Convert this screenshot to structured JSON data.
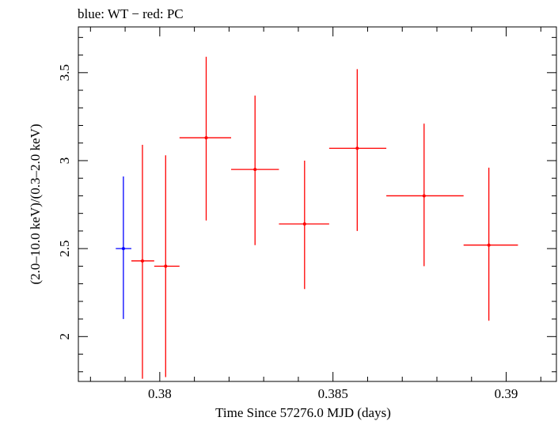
{
  "chart_data": {
    "type": "scatter",
    "title": "blue: WT − red: PC",
    "xlabel": "Time Since 57276.0 MJD (days)",
    "ylabel": "(2.0–10.0 keV)/(0.3–2.0 keV)",
    "xlim": [
      0.37765,
      0.39145
    ],
    "ylim": [
      1.745,
      3.76
    ],
    "x_ticks": [
      0.38,
      0.385,
      0.39
    ],
    "x_tick_labels": [
      "0.38",
      "0.385",
      "0.39"
    ],
    "y_ticks": [
      2,
      2.5,
      3,
      3.5
    ],
    "y_tick_labels": [
      "2",
      "2.5",
      "3",
      "3.5"
    ],
    "grid": false,
    "series": [
      {
        "name": "WT",
        "color": "#0000ff",
        "points": [
          {
            "x": 0.37895,
            "y": 2.5,
            "xlo": 0.37873,
            "xhi": 0.37918,
            "ylo": 2.1,
            "yhi": 2.91
          }
        ]
      },
      {
        "name": "PC",
        "color": "#ff0000",
        "points": [
          {
            "x": 0.3795,
            "y": 2.43,
            "xlo": 0.37918,
            "xhi": 0.37984,
            "ylo": 1.76,
            "yhi": 3.09
          },
          {
            "x": 0.38017,
            "y": 2.4,
            "xlo": 0.37984,
            "xhi": 0.38057,
            "ylo": 1.77,
            "yhi": 3.03
          },
          {
            "x": 0.38134,
            "y": 3.13,
            "xlo": 0.38057,
            "xhi": 0.38206,
            "ylo": 2.66,
            "yhi": 3.59
          },
          {
            "x": 0.38275,
            "y": 2.95,
            "xlo": 0.38206,
            "xhi": 0.38344,
            "ylo": 2.52,
            "yhi": 3.37
          },
          {
            "x": 0.38418,
            "y": 2.64,
            "xlo": 0.38344,
            "xhi": 0.38489,
            "ylo": 2.27,
            "yhi": 3.0
          },
          {
            "x": 0.3857,
            "y": 3.07,
            "xlo": 0.38489,
            "xhi": 0.38654,
            "ylo": 2.6,
            "yhi": 3.52
          },
          {
            "x": 0.38763,
            "y": 2.8,
            "xlo": 0.38654,
            "xhi": 0.38877,
            "ylo": 2.4,
            "yhi": 3.21
          },
          {
            "x": 0.3895,
            "y": 2.52,
            "xlo": 0.38877,
            "xhi": 0.39034,
            "ylo": 2.09,
            "yhi": 2.96
          }
        ]
      }
    ]
  }
}
